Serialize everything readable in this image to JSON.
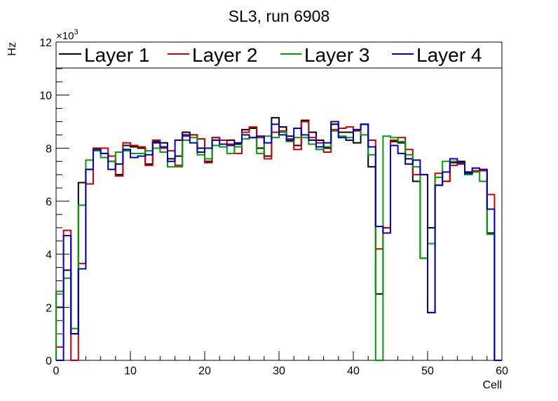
{
  "chart_data": {
    "type": "step-histogram",
    "title": "SL3, run 6908",
    "xlabel": "Cell",
    "ylabel": "Hz",
    "y_exponent_label": "×10",
    "y_exponent_power": "3",
    "xlim": [
      0,
      60
    ],
    "ylim": [
      0,
      12
    ],
    "x_major_ticks": [
      0,
      10,
      20,
      30,
      40,
      50,
      60
    ],
    "x_tick_labels": [
      "0",
      "10",
      "20",
      "30",
      "40",
      "50",
      "60"
    ],
    "y_major_ticks": [
      0,
      2,
      4,
      6,
      8,
      10,
      12
    ],
    "y_tick_labels": [
      "0",
      "2",
      "4",
      "6",
      "8",
      "10",
      "12"
    ],
    "legend_position": "top",
    "series": [
      {
        "name": "Layer 1",
        "color": "#000000",
        "values": [
          2.0,
          3.4,
          1.0,
          6.7,
          7.2,
          8.0,
          7.8,
          7.5,
          7.0,
          8.1,
          8.05,
          8.0,
          7.4,
          8.25,
          8.2,
          7.6,
          7.7,
          8.6,
          8.5,
          8.0,
          7.5,
          8.4,
          8.3,
          8.3,
          8.15,
          8.7,
          8.75,
          8.0,
          7.7,
          9.15,
          8.8,
          8.45,
          8.1,
          9.05,
          8.6,
          8.3,
          8.0,
          8.9,
          8.6,
          8.6,
          8.2,
          8.9,
          7.3,
          2.5,
          5.0,
          8.25,
          8.2,
          7.6,
          6.75,
          3.85,
          5.0,
          6.6,
          6.75,
          7.45,
          7.5,
          7.1,
          7.15,
          7.15,
          4.8,
          0.0
        ]
      },
      {
        "name": "Layer 2",
        "color": "#d00000",
        "values": [
          0.5,
          4.9,
          0.0,
          3.65,
          6.65,
          8.0,
          8.0,
          7.7,
          6.95,
          8.2,
          8.1,
          8.05,
          7.35,
          8.3,
          8.0,
          7.9,
          7.35,
          8.45,
          8.5,
          8.35,
          7.45,
          8.4,
          8.3,
          8.15,
          7.8,
          8.6,
          8.8,
          8.4,
          7.6,
          8.6,
          8.65,
          8.35,
          7.95,
          9.0,
          8.4,
          8.2,
          7.85,
          8.7,
          8.75,
          8.8,
          8.65,
          8.9,
          8.3,
          4.2,
          5.0,
          8.3,
          8.4,
          7.95,
          7.0,
          7.0,
          1.8,
          7.05,
          6.75,
          7.35,
          7.4,
          7.05,
          7.15,
          7.15,
          6.25,
          0.0
        ]
      },
      {
        "name": "Layer 3",
        "color": "#00a000",
        "values": [
          2.6,
          3.1,
          1.2,
          5.85,
          7.55,
          7.9,
          7.65,
          7.5,
          7.85,
          7.9,
          7.8,
          7.8,
          7.9,
          8.0,
          7.85,
          7.3,
          7.3,
          8.3,
          8.4,
          7.75,
          7.6,
          8.1,
          8.05,
          7.8,
          8.05,
          8.35,
          8.4,
          7.8,
          8.45,
          8.4,
          8.6,
          8.25,
          8.4,
          8.4,
          8.15,
          7.95,
          8.05,
          8.65,
          8.45,
          8.4,
          8.7,
          8.5,
          7.75,
          0.0,
          8.45,
          8.4,
          8.25,
          7.75,
          7.3,
          3.85,
          4.4,
          6.9,
          7.5,
          7.5,
          7.45,
          7.0,
          7.1,
          6.75,
          4.75,
          0.0
        ]
      },
      {
        "name": "Layer 4",
        "color": "#0000c8",
        "values": [
          0.0,
          4.7,
          1.0,
          3.45,
          7.2,
          7.95,
          7.8,
          7.2,
          7.4,
          7.95,
          7.65,
          7.7,
          7.75,
          8.2,
          8.05,
          7.5,
          8.3,
          8.5,
          8.2,
          7.85,
          8.0,
          8.3,
          8.15,
          8.1,
          8.2,
          8.5,
          8.4,
          8.45,
          8.2,
          8.9,
          8.5,
          8.3,
          8.75,
          8.5,
          8.3,
          8.05,
          8.2,
          9.0,
          8.4,
          8.3,
          8.7,
          8.9,
          8.05,
          5.05,
          4.8,
          8.1,
          7.8,
          7.4,
          7.55,
          7.0,
          1.8,
          6.6,
          7.1,
          7.6,
          7.45,
          7.05,
          7.25,
          7.2,
          5.7,
          0.0
        ]
      }
    ]
  }
}
